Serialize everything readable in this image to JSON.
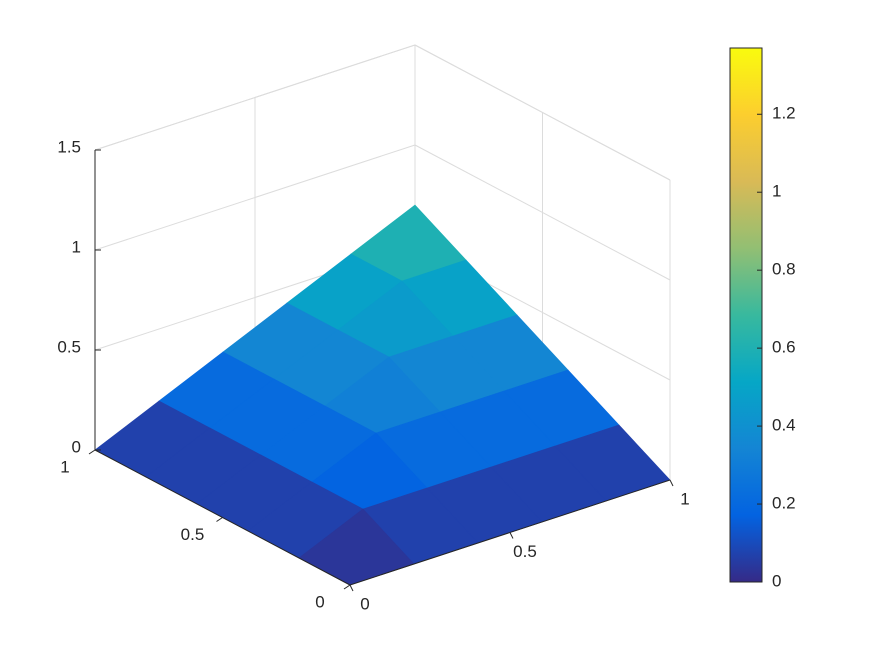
{
  "chart_data": {
    "type": "surface",
    "x": [
      0,
      0.2,
      0.4,
      0.6,
      0.8,
      1
    ],
    "y": [
      0,
      0.2,
      0.4,
      0.6,
      0.8,
      1
    ],
    "z": [
      [
        0,
        0,
        0,
        0,
        0,
        0
      ],
      [
        0,
        0.14,
        0.14,
        0.14,
        0.14,
        0.14
      ],
      [
        0,
        0.14,
        0.28,
        0.28,
        0.28,
        0.28
      ],
      [
        0,
        0.14,
        0.28,
        0.42,
        0.42,
        0.42
      ],
      [
        0,
        0.14,
        0.28,
        0.42,
        0.56,
        0.56
      ],
      [
        0,
        0.14,
        0.28,
        0.42,
        0.56,
        0.7
      ]
    ],
    "xlim": [
      0,
      1
    ],
    "ylim": [
      0,
      1
    ],
    "zlim": [
      0,
      1.5
    ],
    "xticks": [
      0,
      0.5,
      1
    ],
    "yticks": [
      0,
      0.5,
      1
    ],
    "zticks": [
      0,
      0.5,
      1,
      1.5
    ],
    "grid": true,
    "colorbar": {
      "clim": [
        0,
        1.37
      ],
      "ticks": [
        0,
        0.2,
        0.4,
        0.6,
        0.8,
        1,
        1.2
      ]
    },
    "colormap": [
      "#352a87",
      "#0363e1",
      "#1485d4",
      "#06a7c6",
      "#38b99e",
      "#92bf73",
      "#d9ba56",
      "#fcce2e",
      "#f9fb0e"
    ]
  }
}
